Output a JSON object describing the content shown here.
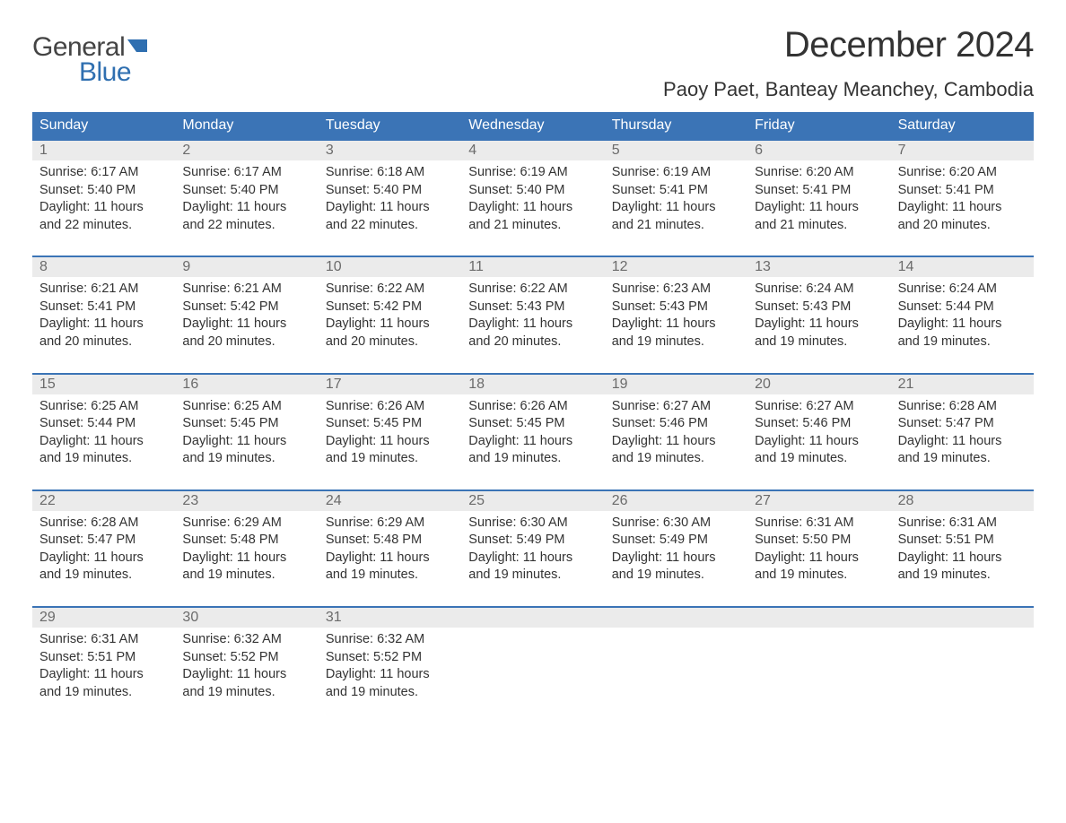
{
  "logo": {
    "text_general": "General",
    "text_blue": "Blue",
    "flag_color": "#2f6fb0"
  },
  "title": "December 2024",
  "location": "Paoy Paet, Banteay Meanchey, Cambodia",
  "colors": {
    "header_bg": "#3b74b6",
    "header_text": "#ffffff",
    "date_row_bg": "#ebebeb",
    "date_text": "#6b6b6b",
    "body_text": "#333333",
    "week_border": "#3b74b6",
    "logo_gray": "#444444",
    "logo_blue": "#2f6fb0",
    "background": "#ffffff"
  },
  "day_names": [
    "Sunday",
    "Monday",
    "Tuesday",
    "Wednesday",
    "Thursday",
    "Friday",
    "Saturday"
  ],
  "weeks": [
    [
      {
        "date": "1",
        "sunrise": "6:17 AM",
        "sunset": "5:40 PM",
        "daylight_hours": "11",
        "daylight_minutes": "22"
      },
      {
        "date": "2",
        "sunrise": "6:17 AM",
        "sunset": "5:40 PM",
        "daylight_hours": "11",
        "daylight_minutes": "22"
      },
      {
        "date": "3",
        "sunrise": "6:18 AM",
        "sunset": "5:40 PM",
        "daylight_hours": "11",
        "daylight_minutes": "22"
      },
      {
        "date": "4",
        "sunrise": "6:19 AM",
        "sunset": "5:40 PM",
        "daylight_hours": "11",
        "daylight_minutes": "21"
      },
      {
        "date": "5",
        "sunrise": "6:19 AM",
        "sunset": "5:41 PM",
        "daylight_hours": "11",
        "daylight_minutes": "21"
      },
      {
        "date": "6",
        "sunrise": "6:20 AM",
        "sunset": "5:41 PM",
        "daylight_hours": "11",
        "daylight_minutes": "21"
      },
      {
        "date": "7",
        "sunrise": "6:20 AM",
        "sunset": "5:41 PM",
        "daylight_hours": "11",
        "daylight_minutes": "20"
      }
    ],
    [
      {
        "date": "8",
        "sunrise": "6:21 AM",
        "sunset": "5:41 PM",
        "daylight_hours": "11",
        "daylight_minutes": "20"
      },
      {
        "date": "9",
        "sunrise": "6:21 AM",
        "sunset": "5:42 PM",
        "daylight_hours": "11",
        "daylight_minutes": "20"
      },
      {
        "date": "10",
        "sunrise": "6:22 AM",
        "sunset": "5:42 PM",
        "daylight_hours": "11",
        "daylight_minutes": "20"
      },
      {
        "date": "11",
        "sunrise": "6:22 AM",
        "sunset": "5:43 PM",
        "daylight_hours": "11",
        "daylight_minutes": "20"
      },
      {
        "date": "12",
        "sunrise": "6:23 AM",
        "sunset": "5:43 PM",
        "daylight_hours": "11",
        "daylight_minutes": "19"
      },
      {
        "date": "13",
        "sunrise": "6:24 AM",
        "sunset": "5:43 PM",
        "daylight_hours": "11",
        "daylight_minutes": "19"
      },
      {
        "date": "14",
        "sunrise": "6:24 AM",
        "sunset": "5:44 PM",
        "daylight_hours": "11",
        "daylight_minutes": "19"
      }
    ],
    [
      {
        "date": "15",
        "sunrise": "6:25 AM",
        "sunset": "5:44 PM",
        "daylight_hours": "11",
        "daylight_minutes": "19"
      },
      {
        "date": "16",
        "sunrise": "6:25 AM",
        "sunset": "5:45 PM",
        "daylight_hours": "11",
        "daylight_minutes": "19"
      },
      {
        "date": "17",
        "sunrise": "6:26 AM",
        "sunset": "5:45 PM",
        "daylight_hours": "11",
        "daylight_minutes": "19"
      },
      {
        "date": "18",
        "sunrise": "6:26 AM",
        "sunset": "5:45 PM",
        "daylight_hours": "11",
        "daylight_minutes": "19"
      },
      {
        "date": "19",
        "sunrise": "6:27 AM",
        "sunset": "5:46 PM",
        "daylight_hours": "11",
        "daylight_minutes": "19"
      },
      {
        "date": "20",
        "sunrise": "6:27 AM",
        "sunset": "5:46 PM",
        "daylight_hours": "11",
        "daylight_minutes": "19"
      },
      {
        "date": "21",
        "sunrise": "6:28 AM",
        "sunset": "5:47 PM",
        "daylight_hours": "11",
        "daylight_minutes": "19"
      }
    ],
    [
      {
        "date": "22",
        "sunrise": "6:28 AM",
        "sunset": "5:47 PM",
        "daylight_hours": "11",
        "daylight_minutes": "19"
      },
      {
        "date": "23",
        "sunrise": "6:29 AM",
        "sunset": "5:48 PM",
        "daylight_hours": "11",
        "daylight_minutes": "19"
      },
      {
        "date": "24",
        "sunrise": "6:29 AM",
        "sunset": "5:48 PM",
        "daylight_hours": "11",
        "daylight_minutes": "19"
      },
      {
        "date": "25",
        "sunrise": "6:30 AM",
        "sunset": "5:49 PM",
        "daylight_hours": "11",
        "daylight_minutes": "19"
      },
      {
        "date": "26",
        "sunrise": "6:30 AM",
        "sunset": "5:49 PM",
        "daylight_hours": "11",
        "daylight_minutes": "19"
      },
      {
        "date": "27",
        "sunrise": "6:31 AM",
        "sunset": "5:50 PM",
        "daylight_hours": "11",
        "daylight_minutes": "19"
      },
      {
        "date": "28",
        "sunrise": "6:31 AM",
        "sunset": "5:51 PM",
        "daylight_hours": "11",
        "daylight_minutes": "19"
      }
    ],
    [
      {
        "date": "29",
        "sunrise": "6:31 AM",
        "sunset": "5:51 PM",
        "daylight_hours": "11",
        "daylight_minutes": "19"
      },
      {
        "date": "30",
        "sunrise": "6:32 AM",
        "sunset": "5:52 PM",
        "daylight_hours": "11",
        "daylight_minutes": "19"
      },
      {
        "date": "31",
        "sunrise": "6:32 AM",
        "sunset": "5:52 PM",
        "daylight_hours": "11",
        "daylight_minutes": "19"
      },
      null,
      null,
      null,
      null
    ]
  ],
  "labels": {
    "sunrise_prefix": "Sunrise: ",
    "sunset_prefix": "Sunset: ",
    "daylight_prefix": "Daylight: ",
    "hours_word": " hours",
    "and_word": "and ",
    "minutes_word": " minutes."
  }
}
